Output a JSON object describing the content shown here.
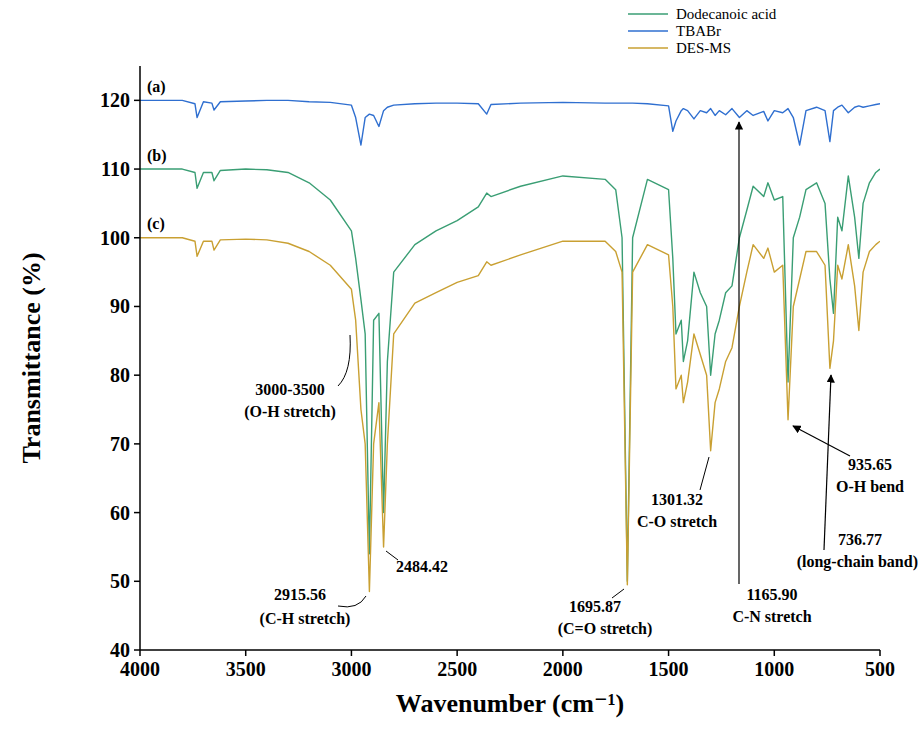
{
  "chart_data": {
    "type": "line",
    "x_label": "Wavenumber (cm⁻¹)",
    "y_label": "Transmittance (%)",
    "xlim": [
      4000,
      500
    ],
    "ylim": [
      40,
      125
    ],
    "xticks": [
      4000,
      3500,
      3000,
      2500,
      2000,
      1500,
      1000,
      500
    ],
    "yticks": [
      40,
      50,
      60,
      70,
      80,
      90,
      100,
      110,
      120
    ],
    "grid": false,
    "legend": "top",
    "x": [
      4000,
      3800,
      3740,
      3730,
      3700,
      3660,
      3650,
      3620,
      3500,
      3400,
      3300,
      3200,
      3100,
      3000,
      2980,
      2955,
      2935,
      2915,
      2895,
      2870,
      2848,
      2830,
      2800,
      2700,
      2600,
      2500,
      2400,
      2360,
      2340,
      2200,
      2000,
      1800,
      1750,
      1720,
      1695,
      1670,
      1600,
      1500,
      1480,
      1465,
      1440,
      1430,
      1410,
      1380,
      1350,
      1320,
      1301,
      1280,
      1260,
      1230,
      1200,
      1165,
      1130,
      1100,
      1050,
      1030,
      1000,
      960,
      935,
      910,
      880,
      850,
      800,
      760,
      737,
      720,
      700,
      680,
      650,
      620,
      600,
      580,
      550,
      520,
      500
    ],
    "series": [
      {
        "name": "Dodecanoic acid",
        "color": "#3a9e74",
        "values": [
          110,
          110,
          109.5,
          107.2,
          109.5,
          109.5,
          108.3,
          109.8,
          110,
          109.9,
          109.5,
          108,
          105.5,
          101,
          97,
          91,
          86,
          54,
          88,
          89,
          60,
          82,
          95,
          99,
          101,
          102.5,
          104.5,
          106.5,
          106,
          107.5,
          109,
          108.5,
          107,
          100,
          50,
          100,
          108.5,
          107,
          97,
          86,
          88,
          82,
          85,
          95,
          92,
          90,
          80,
          86,
          88,
          92,
          93,
          100,
          104,
          107.5,
          106,
          108,
          105.5,
          106,
          79,
          100,
          103,
          107,
          108,
          105,
          94,
          89,
          103,
          101,
          109,
          103,
          97,
          105,
          108,
          109.5,
          110
        ]
      },
      {
        "name": "TBABr",
        "color": "#2f6fd0",
        "values": [
          120,
          120,
          119.5,
          117.5,
          119.8,
          119.6,
          118.6,
          119.8,
          119.9,
          120,
          120,
          119.8,
          119.7,
          119.3,
          117.5,
          113.5,
          117.5,
          118,
          117.8,
          116.2,
          118.5,
          119,
          119.3,
          119.5,
          119.6,
          119.6,
          119.5,
          118,
          119.4,
          119.6,
          119.7,
          119.6,
          119.6,
          119.6,
          119.6,
          119.6,
          119.5,
          119.2,
          115.5,
          117,
          118.5,
          118.8,
          118.5,
          117.3,
          118.5,
          118.2,
          118.8,
          117.8,
          118.5,
          117.9,
          118.8,
          117.5,
          118.5,
          117.8,
          118.4,
          117,
          118.5,
          118.2,
          118.8,
          117.5,
          113.5,
          118.5,
          119,
          118.5,
          114,
          118.5,
          119,
          119.3,
          118.2,
          119,
          119.2,
          119,
          119.2,
          119.4,
          119.5
        ]
      },
      {
        "name": "DES-MS",
        "color": "#c9a032",
        "values": [
          100,
          100,
          99.5,
          97.3,
          99.5,
          99.5,
          98.2,
          99.7,
          99.8,
          99.7,
          99.2,
          98,
          96,
          92.5,
          88,
          75,
          70,
          48.5,
          70,
          76,
          55,
          70,
          86,
          90.5,
          92,
          93.5,
          94.5,
          96.5,
          96,
          97.5,
          99.5,
          99.5,
          98,
          95,
          49.5,
          95,
          99,
          97.5,
          90,
          78,
          80,
          76,
          79,
          86,
          83,
          80,
          69,
          76,
          78,
          82,
          84,
          90,
          95,
          99,
          97,
          98.5,
          95,
          96,
          73.5,
          90,
          94,
          98,
          98,
          96,
          81,
          85,
          96,
          94,
          99,
          93,
          86.5,
          95,
          98,
          99,
          99.5
        ]
      }
    ],
    "annotations": [
      "(a)",
      "(b)",
      "(c)",
      "3000-3500",
      "(O-H stretch)",
      "2915.56",
      "(C-H stretch)",
      "2484.42",
      "1695.87",
      "(C=O stretch)",
      "1301.32",
      "C-O stretch",
      "1165.90",
      "C-N stretch",
      "935.65",
      "O-H bend",
      "736.77",
      "(long-chain band)"
    ]
  }
}
